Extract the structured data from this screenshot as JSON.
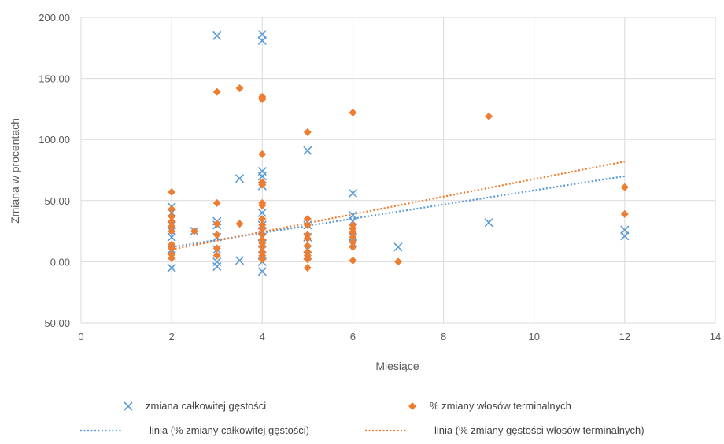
{
  "chart_data": {
    "type": "scatter",
    "title": "",
    "xlabel": "Miesiące",
    "ylabel": "Zmiana w procentach",
    "xlim": [
      0,
      14
    ],
    "ylim": [
      -50,
      200
    ],
    "x_ticks": [
      0,
      2,
      4,
      6,
      8,
      10,
      12,
      14
    ],
    "y_ticks": [
      -50,
      0,
      50,
      100,
      150,
      200
    ],
    "x_tick_labels": [
      "0",
      "2",
      "4",
      "6",
      "8",
      "10",
      "12",
      "14"
    ],
    "y_tick_labels": [
      "-50.00",
      "0.00",
      "50.00",
      "100.00",
      "150.00",
      "200.00"
    ],
    "grid": "vertical and horizontal",
    "legend_position": "bottom",
    "series": [
      {
        "name": "zmiana całkowitej gęstości",
        "marker": "x",
        "color": "#5B9BD5",
        "points": [
          [
            2,
            45
          ],
          [
            2,
            40
          ],
          [
            2,
            35
          ],
          [
            2,
            30
          ],
          [
            2,
            25
          ],
          [
            2,
            20
          ],
          [
            2,
            10
          ],
          [
            2,
            5
          ],
          [
            2,
            -5
          ],
          [
            2.5,
            25
          ],
          [
            3,
            185
          ],
          [
            3,
            33
          ],
          [
            3,
            30
          ],
          [
            3,
            20
          ],
          [
            3,
            10
          ],
          [
            3,
            -4
          ],
          [
            3.5,
            68
          ],
          [
            3,
            0
          ],
          [
            3.5,
            1
          ],
          [
            4,
            186
          ],
          [
            4,
            181
          ],
          [
            4,
            74
          ],
          [
            4,
            70
          ],
          [
            4,
            62
          ],
          [
            4,
            40
          ],
          [
            4,
            30
          ],
          [
            4,
            25
          ],
          [
            4,
            20
          ],
          [
            4,
            15
          ],
          [
            4,
            10
          ],
          [
            4,
            5
          ],
          [
            4,
            0
          ],
          [
            4,
            -8
          ],
          [
            5,
            91
          ],
          [
            5,
            30
          ],
          [
            5,
            20
          ],
          [
            5,
            10
          ],
          [
            5,
            5
          ],
          [
            6,
            56
          ],
          [
            6,
            38
          ],
          [
            6,
            33
          ],
          [
            6,
            25
          ],
          [
            6,
            20
          ],
          [
            6,
            15
          ],
          [
            7,
            12
          ],
          [
            9,
            32
          ],
          [
            12,
            26
          ],
          [
            12,
            21
          ]
        ]
      },
      {
        "name": "% zmiany włosów terminalnych",
        "marker": "diamond",
        "color": "#ED7D31",
        "points": [
          [
            2,
            57
          ],
          [
            2,
            43
          ],
          [
            2,
            37
          ],
          [
            2,
            33
          ],
          [
            2,
            29
          ],
          [
            2,
            25
          ],
          [
            2,
            14
          ],
          [
            2,
            11
          ],
          [
            2,
            6
          ],
          [
            2,
            3
          ],
          [
            2.5,
            25
          ],
          [
            3,
            139
          ],
          [
            3,
            48
          ],
          [
            3,
            31
          ],
          [
            3,
            22
          ],
          [
            3,
            11
          ],
          [
            3,
            5
          ],
          [
            3.5,
            142
          ],
          [
            3.5,
            31
          ],
          [
            4,
            135
          ],
          [
            4,
            133
          ],
          [
            4,
            88
          ],
          [
            4,
            65
          ],
          [
            4,
            63
          ],
          [
            4,
            48
          ],
          [
            4,
            46
          ],
          [
            4,
            35
          ],
          [
            4,
            30
          ],
          [
            4,
            27
          ],
          [
            4,
            22
          ],
          [
            4,
            18
          ],
          [
            4,
            15
          ],
          [
            4,
            12
          ],
          [
            4,
            8
          ],
          [
            4,
            5
          ],
          [
            4,
            2
          ],
          [
            5,
            106
          ],
          [
            5,
            35
          ],
          [
            5,
            30
          ],
          [
            5,
            22
          ],
          [
            5,
            19
          ],
          [
            5,
            13
          ],
          [
            5,
            8
          ],
          [
            5,
            5
          ],
          [
            5,
            2
          ],
          [
            5,
            -5
          ],
          [
            6,
            122
          ],
          [
            6,
            30
          ],
          [
            6,
            27
          ],
          [
            6,
            24
          ],
          [
            6,
            20
          ],
          [
            6,
            16
          ],
          [
            6,
            12
          ],
          [
            6,
            1
          ],
          [
            7,
            0
          ],
          [
            9,
            119
          ],
          [
            12,
            61
          ],
          [
            12,
            39
          ]
        ]
      }
    ],
    "trendlines": [
      {
        "name": "linia (% zmiany całkowitej gęstości)",
        "color": "#5B9BD5",
        "x": [
          2,
          12
        ],
        "y": [
          12,
          70
        ]
      },
      {
        "name": "linia (% zmiany gęstości włosów terminalnych)",
        "color": "#ED7D31",
        "x": [
          2,
          12
        ],
        "y": [
          10,
          82
        ]
      }
    ]
  }
}
